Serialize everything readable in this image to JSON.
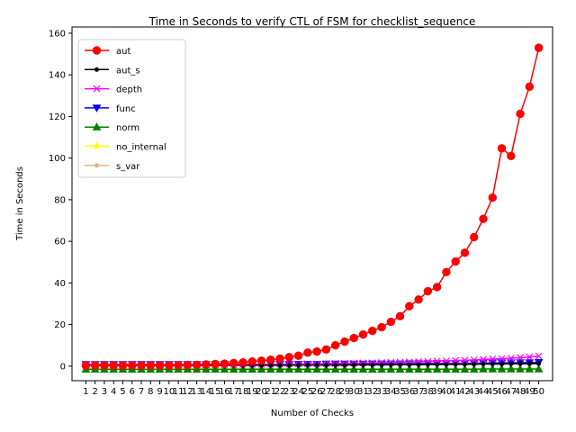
{
  "chart_data": {
    "type": "line",
    "title": "Time in Seconds to verify CTL of FSM for checklist_sequence",
    "xlabel": "Number of Checks",
    "ylabel": "Time in Seconds",
    "x": [
      1,
      2,
      3,
      4,
      5,
      6,
      7,
      8,
      9,
      10,
      11,
      12,
      13,
      14,
      15,
      16,
      17,
      18,
      19,
      20,
      21,
      22,
      23,
      24,
      25,
      26,
      27,
      28,
      29,
      30,
      31,
      32,
      33,
      34,
      35,
      36,
      37,
      38,
      39,
      40,
      41,
      42,
      43,
      44,
      45,
      46,
      47,
      48,
      49,
      50
    ],
    "ylim": [
      -7,
      163
    ],
    "yticks": [
      0,
      20,
      40,
      60,
      80,
      100,
      120,
      140,
      160
    ],
    "grid": false,
    "legend_position": "top-left",
    "series": [
      {
        "name": "aut",
        "color": "#ff0000",
        "marker": "circle",
        "values": [
          0.3,
          0.3,
          0.3,
          0.3,
          0.3,
          0.3,
          0.3,
          0.3,
          0.3,
          0.3,
          0.4,
          0.5,
          0.6,
          0.8,
          1.0,
          1.2,
          1.5,
          1.8,
          2.2,
          2.6,
          3.1,
          3.6,
          4.3,
          5.0,
          6.5,
          7.0,
          8.0,
          10.0,
          11.8,
          13.5,
          15.2,
          17.0,
          18.7,
          21.3,
          24.0,
          28.8,
          32.0,
          36.0,
          38.0,
          45.2,
          50.3,
          54.5,
          62.0,
          70.8,
          81.0,
          104.7,
          101.0,
          121.3,
          134.3,
          153.0
        ]
      },
      {
        "name": "aut_s",
        "color": "#000000",
        "marker": "dot",
        "values": [
          0.3,
          0.3,
          0.3,
          0.3,
          0.3,
          0.3,
          0.3,
          0.3,
          0.3,
          0.3,
          0.3,
          0.3,
          0.3,
          0.3,
          0.3,
          0.3,
          0.4,
          0.4,
          0.4,
          0.4,
          0.4,
          0.4,
          0.4,
          0.5,
          0.5,
          0.5,
          0.5,
          0.5,
          0.5,
          0.6,
          0.6,
          0.6,
          0.6,
          0.7,
          0.7,
          0.7,
          0.7,
          0.8,
          0.8,
          0.8,
          0.9,
          0.9,
          0.9,
          1.0,
          1.0,
          1.0,
          1.1,
          1.1,
          1.1,
          1.2
        ]
      },
      {
        "name": "depth",
        "color": "#ff00ff",
        "marker": "x",
        "values": [
          0.5,
          0.5,
          0.5,
          0.5,
          0.5,
          0.5,
          0.5,
          0.5,
          0.5,
          0.5,
          0.6,
          0.6,
          0.6,
          0.6,
          0.7,
          0.7,
          0.7,
          0.8,
          0.8,
          0.8,
          0.9,
          0.9,
          1.0,
          1.0,
          1.1,
          1.1,
          1.2,
          1.3,
          1.3,
          1.4,
          1.5,
          1.6,
          1.7,
          1.8,
          1.9,
          2.0,
          2.1,
          2.2,
          2.4,
          2.5,
          2.7,
          2.8,
          3.0,
          3.2,
          3.4,
          3.6,
          3.8,
          4.1,
          4.4,
          4.8
        ]
      },
      {
        "name": "func",
        "color": "#0000ff",
        "marker": "triangle-down",
        "values": [
          0.8,
          0.8,
          0.8,
          0.8,
          0.8,
          0.8,
          0.8,
          0.8,
          0.8,
          0.8,
          0.8,
          0.8,
          0.8,
          0.8,
          0.8,
          0.8,
          0.8,
          0.8,
          0.9,
          0.9,
          0.9,
          0.9,
          0.9,
          0.9,
          0.9,
          0.9,
          1.0,
          1.0,
          1.0,
          1.0,
          1.0,
          1.1,
          1.1,
          1.1,
          1.1,
          1.2,
          1.2,
          1.2,
          1.3,
          1.3,
          1.3,
          1.4,
          1.4,
          1.5,
          1.5,
          1.6,
          1.6,
          1.7,
          1.7,
          1.8
        ]
      },
      {
        "name": "norm",
        "color": "#008000",
        "marker": "triangle-up",
        "values": [
          -1.5,
          -1.5,
          -1.5,
          -1.5,
          -1.5,
          -1.5,
          -1.5,
          -1.5,
          -1.5,
          -1.5,
          -1.5,
          -1.5,
          -1.5,
          -1.5,
          -1.5,
          -1.5,
          -1.5,
          -1.5,
          -1.5,
          -1.5,
          -1.5,
          -1.5,
          -1.5,
          -1.5,
          -1.5,
          -1.5,
          -1.5,
          -1.5,
          -1.5,
          -1.5,
          -1.5,
          -1.5,
          -1.5,
          -1.5,
          -1.5,
          -1.5,
          -1.5,
          -1.5,
          -1.5,
          -1.5,
          -1.5,
          -1.5,
          -1.5,
          -1.4,
          -1.4,
          -1.4,
          -1.4,
          -1.4,
          -1.4,
          -1.4
        ]
      },
      {
        "name": "no_internal",
        "color": "#ffff00",
        "marker": "star",
        "values": [
          -1.6,
          -1.6,
          -1.6,
          -1.6,
          -1.6,
          -1.6,
          -1.6,
          -1.6,
          -1.6,
          -1.6,
          -1.6,
          -1.6,
          -1.6,
          -1.6,
          -1.6,
          -1.6,
          -1.6,
          -1.6,
          -1.6,
          -1.6,
          -1.6,
          -1.6,
          -1.6,
          -1.6,
          -1.6,
          -1.6,
          -1.6,
          -1.6,
          -1.6,
          -1.6,
          -1.6,
          -1.6,
          -1.6,
          -1.6,
          -1.6,
          -1.6,
          -1.6,
          -1.6,
          -1.6,
          -1.6,
          -1.6,
          -1.6,
          -1.6,
          -1.5,
          -1.5,
          -1.5,
          -1.5,
          -1.5,
          -1.5,
          -1.5
        ]
      },
      {
        "name": "s_var",
        "color": "#deb887",
        "marker": "dot",
        "values": [
          -1.7,
          -1.7,
          -1.7,
          -1.7,
          -1.7,
          -1.7,
          -1.7,
          -1.7,
          -1.7,
          -1.7,
          -1.7,
          -1.7,
          -1.7,
          -1.7,
          -1.7,
          -1.7,
          -1.7,
          -1.7,
          -1.7,
          -1.7,
          -1.7,
          -1.7,
          -1.7,
          -1.7,
          -1.7,
          -1.7,
          -1.7,
          -1.7,
          -1.7,
          -1.7,
          -1.7,
          -1.7,
          -1.7,
          -1.7,
          -1.7,
          -1.7,
          -1.7,
          -1.7,
          -1.7,
          -1.7,
          -1.7,
          -1.7,
          -1.7,
          -1.6,
          -1.6,
          -1.6,
          -1.6,
          -1.6,
          -1.6,
          -1.6
        ]
      }
    ]
  }
}
